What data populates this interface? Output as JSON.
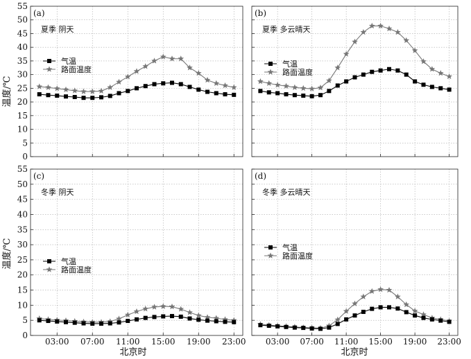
{
  "figure": {
    "y_axis_label": "温度/℃",
    "x_axis_label": "北京时"
  },
  "chart_data": [
    {
      "type": "line",
      "panel_label": "(a)",
      "condition": "夏季 阴天",
      "x": [
        1,
        2,
        3,
        4,
        5,
        6,
        7,
        8,
        9,
        10,
        11,
        12,
        13,
        14,
        15,
        16,
        17,
        18,
        19,
        20,
        21,
        22,
        23
      ],
      "series": [
        {
          "name": "气温",
          "marker": "square",
          "color": "#000000",
          "values": [
            22.8,
            22.5,
            22.3,
            22.0,
            21.8,
            21.5,
            21.5,
            21.7,
            22.2,
            23.2,
            24.0,
            25.0,
            25.8,
            26.5,
            26.8,
            27.0,
            26.5,
            25.5,
            24.5,
            23.7,
            23.2,
            22.8,
            22.6
          ]
        },
        {
          "name": "路面温度",
          "marker": "star",
          "color": "#777777",
          "values": [
            25.6,
            25.3,
            24.9,
            24.5,
            24.1,
            23.8,
            23.8,
            24.0,
            25.3,
            27.3,
            29.2,
            31.2,
            33.0,
            35.0,
            36.5,
            35.8,
            35.8,
            32.5,
            30.5,
            28.0,
            26.8,
            26.0,
            25.3
          ]
        }
      ],
      "ylim": [
        0,
        55
      ],
      "yticks": [
        0,
        5,
        10,
        15,
        20,
        25,
        30,
        35,
        40,
        45,
        50,
        55
      ],
      "xlim": [
        0,
        24
      ],
      "xtick_values": [
        3,
        7,
        11,
        15,
        19,
        23
      ],
      "xtick_labels": [
        "03:00",
        "07:00",
        "11:00",
        "15:00",
        "19:00",
        "23:00"
      ],
      "grid": true,
      "legend_position": "left, mid-upper",
      "show_y_labels": true,
      "show_x_labels": false
    },
    {
      "type": "line",
      "panel_label": "(b)",
      "condition": "夏季 多云晴天",
      "x": [
        1,
        2,
        3,
        4,
        5,
        6,
        7,
        8,
        9,
        10,
        11,
        12,
        13,
        14,
        15,
        16,
        17,
        18,
        19,
        20,
        21,
        22,
        23
      ],
      "series": [
        {
          "name": "气温",
          "marker": "square",
          "color": "#000000",
          "values": [
            24.0,
            23.5,
            23.2,
            22.8,
            22.5,
            22.3,
            22.1,
            22.5,
            24.0,
            26.0,
            27.5,
            29.0,
            30.0,
            31.0,
            31.5,
            32.0,
            31.5,
            30.0,
            27.5,
            26.3,
            25.5,
            25.0,
            24.5
          ]
        },
        {
          "name": "路面温度",
          "marker": "star",
          "color": "#777777",
          "values": [
            27.5,
            26.8,
            26.2,
            25.8,
            25.3,
            25.0,
            24.8,
            25.2,
            27.8,
            32.5,
            37.5,
            42.0,
            45.5,
            47.8,
            47.8,
            46.8,
            45.5,
            42.5,
            38.8,
            34.8,
            32.0,
            30.5,
            29.3
          ]
        }
      ],
      "ylim": [
        0,
        55
      ],
      "yticks": [
        0,
        5,
        10,
        15,
        20,
        25,
        30,
        35,
        40,
        45,
        50,
        55
      ],
      "xlim": [
        0,
        24
      ],
      "xtick_values": [
        3,
        7,
        11,
        15,
        19,
        23
      ],
      "xtick_labels": [
        "03:00",
        "07:00",
        "11:00",
        "15:00",
        "19:00",
        "23:00"
      ],
      "grid": true,
      "legend_position": "left, mid-upper",
      "show_y_labels": false,
      "show_x_labels": false
    },
    {
      "type": "line",
      "panel_label": "(c)",
      "condition": "冬季 阴天",
      "x": [
        1,
        2,
        3,
        4,
        5,
        6,
        7,
        8,
        9,
        10,
        11,
        12,
        13,
        14,
        15,
        16,
        17,
        18,
        19,
        20,
        21,
        22,
        23
      ],
      "series": [
        {
          "name": "气温",
          "marker": "square",
          "color": "#000000",
          "values": [
            5.0,
            4.8,
            4.6,
            4.4,
            4.2,
            4.0,
            3.9,
            3.9,
            4.0,
            4.3,
            4.8,
            5.3,
            5.8,
            6.1,
            6.3,
            6.4,
            6.2,
            5.6,
            5.2,
            4.9,
            4.7,
            4.5,
            4.4
          ]
        },
        {
          "name": "路面温度",
          "marker": "star",
          "color": "#777777",
          "values": [
            5.6,
            5.3,
            5.1,
            4.9,
            4.7,
            4.5,
            4.4,
            4.4,
            4.6,
            5.5,
            6.8,
            7.9,
            8.8,
            9.4,
            9.6,
            9.5,
            8.7,
            7.6,
            6.6,
            6.0,
            5.7,
            5.3,
            5.0
          ]
        }
      ],
      "ylim": [
        0,
        55
      ],
      "yticks": [
        0,
        5,
        10,
        15,
        20,
        25,
        30,
        35,
        40,
        45,
        50,
        55
      ],
      "xlim": [
        0,
        24
      ],
      "xtick_values": [
        3,
        7,
        11,
        15,
        19,
        23
      ],
      "xtick_labels": [
        "03:00",
        "07:00",
        "11:00",
        "15:00",
        "19:00",
        "23:00"
      ],
      "grid": true,
      "legend_position": "left, lower",
      "show_y_labels": true,
      "show_x_labels": true
    },
    {
      "type": "line",
      "panel_label": "(d)",
      "condition": "冬季 多云晴天",
      "x": [
        1,
        2,
        3,
        4,
        5,
        6,
        7,
        8,
        9,
        10,
        11,
        12,
        13,
        14,
        15,
        16,
        17,
        18,
        19,
        20,
        21,
        22,
        23
      ],
      "series": [
        {
          "name": "气温",
          "marker": "square",
          "color": "#000000",
          "values": [
            3.4,
            3.2,
            3.0,
            2.8,
            2.6,
            2.5,
            2.3,
            2.2,
            2.6,
            3.8,
            5.3,
            6.6,
            7.8,
            8.8,
            9.3,
            9.3,
            8.9,
            7.7,
            6.6,
            5.8,
            5.3,
            4.9,
            4.5
          ]
        },
        {
          "name": "路面温度",
          "marker": "star",
          "color": "#777777",
          "values": [
            3.7,
            3.4,
            3.2,
            3.0,
            2.8,
            2.6,
            2.5,
            2.4,
            3.2,
            5.2,
            8.0,
            10.5,
            12.8,
            14.6,
            15.2,
            15.0,
            12.8,
            10.2,
            8.1,
            6.9,
            5.8,
            5.3,
            4.8
          ]
        }
      ],
      "ylim": [
        0,
        55
      ],
      "yticks": [
        0,
        5,
        10,
        15,
        20,
        25,
        30,
        35,
        40,
        45,
        50,
        55
      ],
      "xlim": [
        0,
        24
      ],
      "xtick_values": [
        3,
        7,
        11,
        15,
        19,
        23
      ],
      "xtick_labels": [
        "03:00",
        "07:00",
        "11:00",
        "15:00",
        "19:00",
        "23:00"
      ],
      "grid": true,
      "legend_position": "left, mid-lower",
      "show_y_labels": false,
      "show_x_labels": true
    }
  ]
}
